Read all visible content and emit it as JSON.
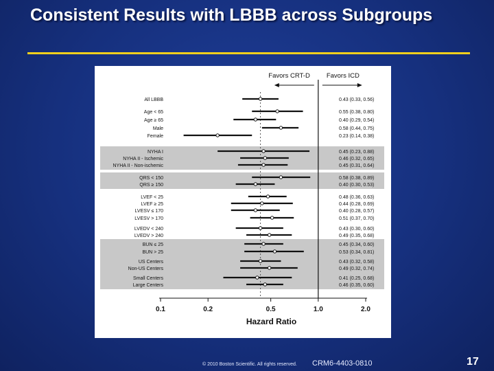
{
  "slide": {
    "title": "Consistent Results with LBBB across Subgroups",
    "copyright": "© 2010 Boston Scientific. All rights reserved.",
    "code": "CRM6-4403-0810",
    "page_number": "17"
  },
  "chart_data": {
    "type": "forest",
    "favors_left": "Favors CRT-D",
    "favors_right": "Favors ICD",
    "xlabel": "Hazard Ratio",
    "xscale": "log",
    "xlim": [
      0.1,
      2.0
    ],
    "x_ticks": [
      {
        "value": 0.1,
        "label": "0.1"
      },
      {
        "value": 0.2,
        "label": "0.2"
      },
      {
        "value": 0.5,
        "label": "0.5"
      },
      {
        "value": 1.0,
        "label": "1.0"
      },
      {
        "value": 2.0,
        "label": "2.0"
      }
    ],
    "reference_line": 1.0,
    "overall_dashed_line": 0.43,
    "rows": [
      {
        "label": "All LBBB",
        "hr": 0.43,
        "lo": 0.33,
        "hi": 0.56,
        "text": "0.43 (0.33, 0.56)",
        "group": 0
      },
      {
        "label": "Age < 65",
        "hr": 0.55,
        "lo": 0.38,
        "hi": 0.8,
        "text": "0.55 (0.38, 0.80)",
        "group": 1
      },
      {
        "label": "Age ≥ 65",
        "hr": 0.4,
        "lo": 0.29,
        "hi": 0.54,
        "text": "0.40 (0.29, 0.54)",
        "group": 1
      },
      {
        "label": "Male",
        "hr": 0.58,
        "lo": 0.44,
        "hi": 0.75,
        "text": "0.58 (0.44, 0.75)",
        "group": 2
      },
      {
        "label": "Female",
        "hr": 0.23,
        "lo": 0.14,
        "hi": 0.38,
        "text": "0.23 (0.14, 0.38)",
        "group": 2
      },
      {
        "label": "NYHA I",
        "hr": 0.45,
        "lo": 0.23,
        "hi": 0.88,
        "text": "0.45 (0.23, 0.88)",
        "group": 3
      },
      {
        "label": "NYHA II - Ischemic",
        "hr": 0.46,
        "lo": 0.32,
        "hi": 0.65,
        "text": "0.46 (0.32, 0.65)",
        "group": 3
      },
      {
        "label": "NYHA II - Non-ischemic",
        "hr": 0.45,
        "lo": 0.31,
        "hi": 0.64,
        "text": "0.45 (0.31, 0.64)",
        "group": 3
      },
      {
        "label": "QRS < 150",
        "hr": 0.58,
        "lo": 0.38,
        "hi": 0.89,
        "text": "0.58 (0.38, 0.89)",
        "group": 4
      },
      {
        "label": "QRS ≥ 150",
        "hr": 0.4,
        "lo": 0.3,
        "hi": 0.53,
        "text": "0.40 (0.30, 0.53)",
        "group": 4
      },
      {
        "label": "LVEF < 25",
        "hr": 0.48,
        "lo": 0.36,
        "hi": 0.63,
        "text": "0.48 (0.36, 0.63)",
        "group": 5
      },
      {
        "label": "LVEF ≥ 25",
        "hr": 0.44,
        "lo": 0.28,
        "hi": 0.69,
        "text": "0.44 (0.28, 0.69)",
        "group": 5
      },
      {
        "label": "LVESV ≤ 170",
        "hr": 0.4,
        "lo": 0.28,
        "hi": 0.57,
        "text": "0.40 (0.28, 0.57)",
        "group": 5
      },
      {
        "label": "LVESV > 170",
        "hr": 0.51,
        "lo": 0.37,
        "hi": 0.7,
        "text": "0.51 (0.37, 0.70)",
        "group": 5
      },
      {
        "label": "LVEDV < 240",
        "hr": 0.43,
        "lo": 0.3,
        "hi": 0.6,
        "text": "0.43 (0.30, 0.60)",
        "group": 5
      },
      {
        "label": "LVEDV > 240",
        "hr": 0.49,
        "lo": 0.35,
        "hi": 0.68,
        "text": "0.49 (0.35, 0.68)",
        "group": 5
      },
      {
        "label": "BUN ≤ 25",
        "hr": 0.45,
        "lo": 0.34,
        "hi": 0.6,
        "text": "0.45 (0.34, 0.60)",
        "group": 6
      },
      {
        "label": "BUN > 25",
        "hr": 0.53,
        "lo": 0.34,
        "hi": 0.81,
        "text": "0.53 (0.34, 0.81)",
        "group": 6
      },
      {
        "label": "US Centers",
        "hr": 0.43,
        "lo": 0.32,
        "hi": 0.58,
        "text": "0.43 (0.32, 0.58)",
        "group": 6
      },
      {
        "label": "Non-US Centers",
        "hr": 0.49,
        "lo": 0.32,
        "hi": 0.74,
        "text": "0.49 (0.32, 0.74)",
        "group": 6
      },
      {
        "label": "Small Centers",
        "hr": 0.41,
        "lo": 0.25,
        "hi": 0.68,
        "text": "0.41 (0.25, 0.68)",
        "group": 6
      },
      {
        "label": "Large Centers",
        "hr": 0.46,
        "lo": 0.35,
        "hi": 0.6,
        "text": "0.46 (0.35, 0.60)",
        "group": 6
      }
    ],
    "shaded_groups": [
      3,
      4,
      6
    ],
    "colors": {
      "shade": "#c8c8c8",
      "ink": "#111111",
      "title_rule": "#f4d01c"
    }
  }
}
